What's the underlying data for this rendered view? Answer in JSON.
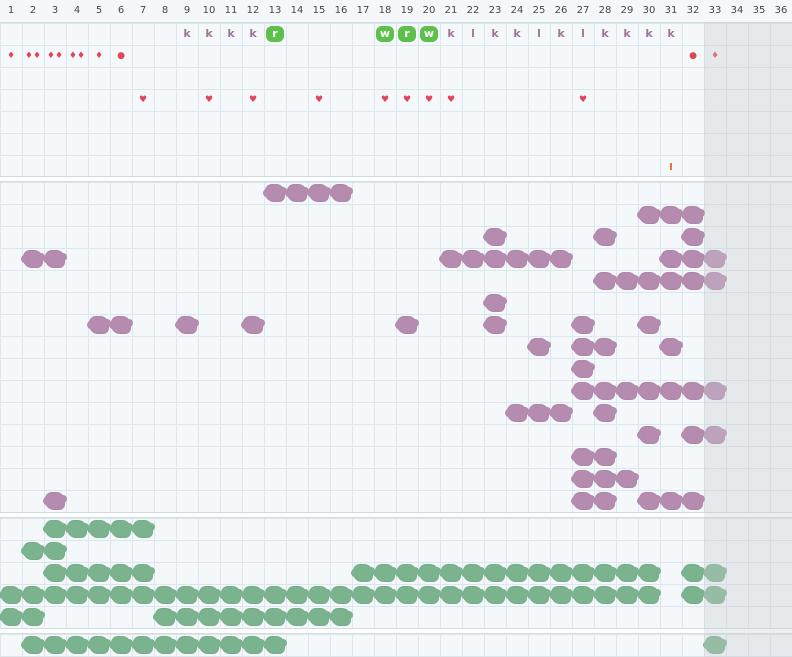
{
  "columns": [
    "1",
    "2",
    "3",
    "4",
    "5",
    "6",
    "7",
    "8",
    "9",
    "10",
    "11",
    "12",
    "13",
    "14",
    "15",
    "16",
    "17",
    "18",
    "19",
    "20",
    "21",
    "22",
    "23",
    "24",
    "25",
    "26",
    "27",
    "28",
    "29",
    "30",
    "31",
    "32",
    "33",
    "34",
    "35",
    "36"
  ],
  "colors": {
    "purple": "#b58bb0",
    "green": "#7bb38e",
    "badge": "#5cc04a",
    "drop": "#e0455a",
    "heart": "#e0455a",
    "tick": "#e8743a"
  },
  "letter_row": [
    {
      "col": 9,
      "text": "k"
    },
    {
      "col": 10,
      "text": "k"
    },
    {
      "col": 11,
      "text": "k"
    },
    {
      "col": 12,
      "text": "k"
    },
    {
      "col": 13,
      "text": "r",
      "badge": true
    },
    {
      "col": 18,
      "text": "w",
      "badge": true
    },
    {
      "col": 19,
      "text": "r",
      "badge": true
    },
    {
      "col": 20,
      "text": "w",
      "badge": true
    },
    {
      "col": 21,
      "text": "k"
    },
    {
      "col": 22,
      "text": "l"
    },
    {
      "col": 23,
      "text": "k"
    },
    {
      "col": 24,
      "text": "k"
    },
    {
      "col": 25,
      "text": "l"
    },
    {
      "col": 26,
      "text": "k"
    },
    {
      "col": 27,
      "text": "l"
    },
    {
      "col": 28,
      "text": "k"
    },
    {
      "col": 29,
      "text": "k"
    },
    {
      "col": 30,
      "text": "k"
    },
    {
      "col": 31,
      "text": "k"
    }
  ],
  "drop_row": [
    {
      "col": 1,
      "icon": "drop-icon",
      "glyph": "♦"
    },
    {
      "col": 2,
      "icon": "drop-icon",
      "glyph": "♦♦"
    },
    {
      "col": 3,
      "icon": "drop-icon",
      "glyph": "♦♦"
    },
    {
      "col": 4,
      "icon": "drop-icon",
      "glyph": "♦♦"
    },
    {
      "col": 5,
      "icon": "drop-icon",
      "glyph": "♦"
    },
    {
      "col": 6,
      "icon": "dot-icon",
      "glyph": "●"
    },
    {
      "col": 32,
      "icon": "dot-icon",
      "glyph": "●"
    },
    {
      "col": 33,
      "icon": "drop-icon",
      "glyph": "♦"
    }
  ],
  "heart_row": [
    {
      "col": 7,
      "glyph": "♥"
    },
    {
      "col": 10,
      "glyph": "♥"
    },
    {
      "col": 12,
      "glyph": "♥"
    },
    {
      "col": 15,
      "glyph": "♥"
    },
    {
      "col": 18,
      "glyph": "♥"
    },
    {
      "col": 19,
      "glyph": "♥"
    },
    {
      "col": 20,
      "glyph": "♥"
    },
    {
      "col": 21,
      "glyph": "♥"
    },
    {
      "col": 27,
      "glyph": "♥"
    }
  ],
  "tick_marks": [
    {
      "col": 31
    }
  ],
  "purple_rows": [
    [
      13,
      14,
      15,
      16
    ],
    [
      30,
      31,
      32
    ],
    [
      23,
      28,
      32
    ],
    [
      2,
      3,
      21,
      22,
      23,
      24,
      25,
      26,
      31,
      32,
      33
    ],
    [
      28,
      29,
      30,
      31,
      32,
      33
    ],
    [
      23
    ],
    [
      5,
      6,
      9,
      12,
      19,
      23,
      27,
      30
    ],
    [
      25,
      27,
      28,
      31
    ],
    [
      27
    ],
    [
      27,
      28,
      29,
      30,
      31,
      32,
      33
    ],
    [
      24,
      25,
      26,
      28
    ],
    [
      30,
      32,
      33
    ],
    [
      27,
      28
    ],
    [
      27,
      28,
      29
    ],
    [
      3,
      27,
      28,
      30,
      31,
      32
    ]
  ],
  "green_rows": [
    [
      3,
      4,
      5,
      6,
      7
    ],
    [
      2,
      3
    ],
    [
      3,
      4,
      5,
      6,
      7,
      17,
      18,
      19,
      20,
      21,
      22,
      23,
      24,
      25,
      26,
      27,
      28,
      29,
      30,
      32,
      33
    ],
    [
      1,
      2,
      3,
      4,
      5,
      6,
      7,
      8,
      9,
      10,
      11,
      12,
      13,
      14,
      15,
      16,
      17,
      18,
      19,
      20,
      21,
      22,
      23,
      24,
      25,
      26,
      27,
      28,
      29,
      30,
      32,
      33
    ],
    [
      1,
      2,
      8,
      9,
      10,
      11,
      12,
      13,
      14,
      15,
      16
    ]
  ],
  "green_bottom_row": [
    2,
    3,
    4,
    5,
    6,
    7,
    8,
    9,
    10,
    11,
    12,
    13,
    33
  ]
}
